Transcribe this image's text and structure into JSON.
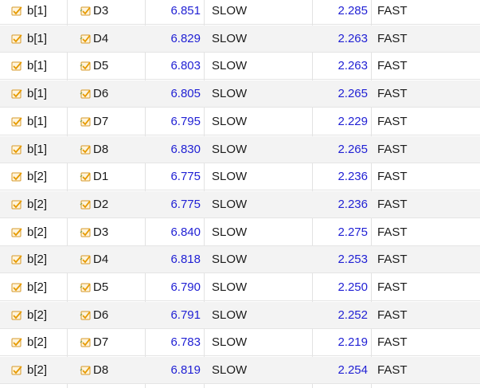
{
  "rows": [
    {
      "pin": "b[1]",
      "delay": "D3",
      "slow_value": "6.851",
      "slow_label": "SLOW",
      "fast_value": "2.285",
      "fast_label": "FAST"
    },
    {
      "pin": "b[1]",
      "delay": "D4",
      "slow_value": "6.829",
      "slow_label": "SLOW",
      "fast_value": "2.263",
      "fast_label": "FAST"
    },
    {
      "pin": "b[1]",
      "delay": "D5",
      "slow_value": "6.803",
      "slow_label": "SLOW",
      "fast_value": "2.263",
      "fast_label": "FAST"
    },
    {
      "pin": "b[1]",
      "delay": "D6",
      "slow_value": "6.805",
      "slow_label": "SLOW",
      "fast_value": "2.265",
      "fast_label": "FAST"
    },
    {
      "pin": "b[1]",
      "delay": "D7",
      "slow_value": "6.795",
      "slow_label": "SLOW",
      "fast_value": "2.229",
      "fast_label": "FAST"
    },
    {
      "pin": "b[1]",
      "delay": "D8",
      "slow_value": "6.830",
      "slow_label": "SLOW",
      "fast_value": "2.265",
      "fast_label": "FAST"
    },
    {
      "pin": "b[2]",
      "delay": "D1",
      "slow_value": "6.775",
      "slow_label": "SLOW",
      "fast_value": "2.236",
      "fast_label": "FAST"
    },
    {
      "pin": "b[2]",
      "delay": "D2",
      "slow_value": "6.775",
      "slow_label": "SLOW",
      "fast_value": "2.236",
      "fast_label": "FAST"
    },
    {
      "pin": "b[2]",
      "delay": "D3",
      "slow_value": "6.840",
      "slow_label": "SLOW",
      "fast_value": "2.275",
      "fast_label": "FAST"
    },
    {
      "pin": "b[2]",
      "delay": "D4",
      "slow_value": "6.818",
      "slow_label": "SLOW",
      "fast_value": "2.253",
      "fast_label": "FAST"
    },
    {
      "pin": "b[2]",
      "delay": "D5",
      "slow_value": "6.790",
      "slow_label": "SLOW",
      "fast_value": "2.250",
      "fast_label": "FAST"
    },
    {
      "pin": "b[2]",
      "delay": "D6",
      "slow_value": "6.791",
      "slow_label": "SLOW",
      "fast_value": "2.252",
      "fast_label": "FAST"
    },
    {
      "pin": "b[2]",
      "delay": "D7",
      "slow_value": "6.783",
      "slow_label": "SLOW",
      "fast_value": "2.219",
      "fast_label": "FAST"
    },
    {
      "pin": "b[2]",
      "delay": "D8",
      "slow_value": "6.819",
      "slow_label": "SLOW",
      "fast_value": "2.254",
      "fast_label": "FAST"
    }
  ],
  "icons": {
    "pin": "pin-icon",
    "delay": "checked-delay-icon"
  },
  "colors": {
    "value_text": "#1f1fd4",
    "label_text": "#1a1a1a",
    "alt_row_bg": "#f3f3f3",
    "grid_line": "#e2e2e2",
    "icon_fill": "#fff4dc",
    "icon_accent": "#e69a00"
  }
}
